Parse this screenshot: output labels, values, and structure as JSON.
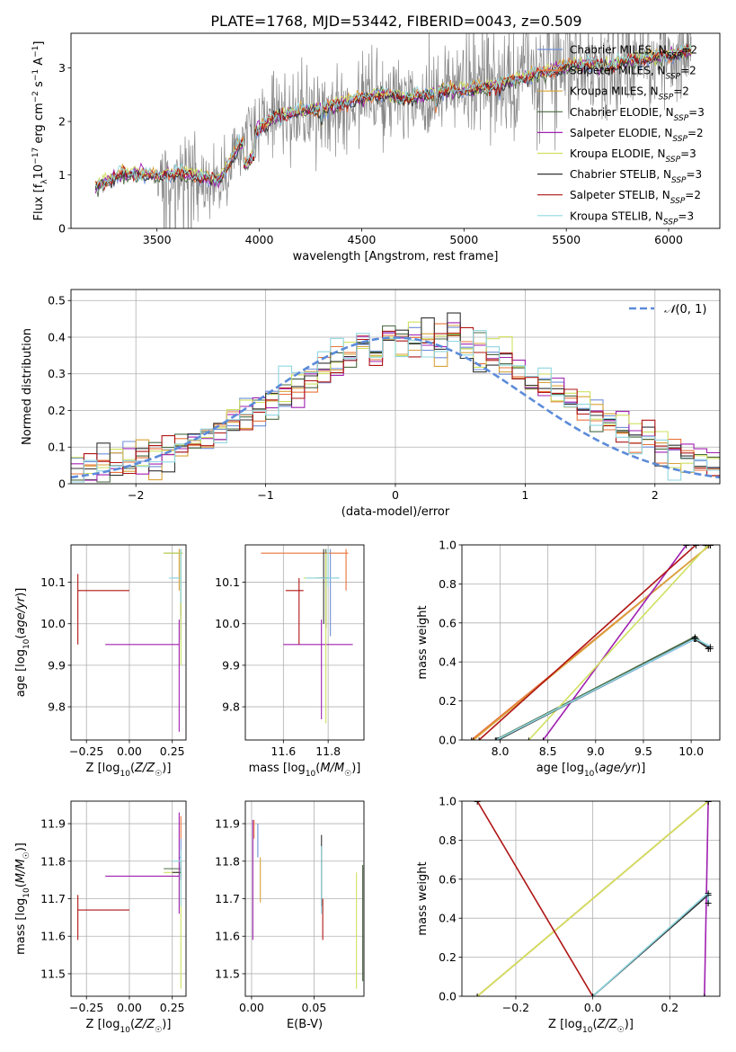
{
  "figure_title": "PLATE=1768, MJD=53442, FIBERID=0043, z=0.509",
  "colors": {
    "Chabrier MILES": "#6f8fd8",
    "Salpeter MILES": "#e8733a",
    "Kroupa MILES": "#d9a23a",
    "Chabrier ELODIE": "#4c6b43",
    "Salpeter ELODIE": "#a020b0",
    "Kroupa ELODIE": "#d0e060",
    "Chabrier STELIB": "#333333",
    "Salpeter STELIB": "#b01515",
    "Kroupa STELIB": "#8fd6e0",
    "data": "#888888",
    "normal": "#5b8bd9"
  },
  "chart_data": [
    {
      "id": "spectrum",
      "type": "line",
      "title": "PLATE=1768, MJD=53442, FIBERID=0043, z=0.509",
      "xlabel": "wavelength [Angstrom, rest frame]",
      "ylabel": "Flux [f_λ 10^-17 erg cm^-2 s^-1 A^-1]",
      "xlim": [
        3080,
        6250
      ],
      "ylim": [
        0,
        3.65
      ],
      "xticks": [
        3500,
        4000,
        4500,
        5000,
        5500,
        6000
      ],
      "yticks": [
        0,
        1,
        2,
        3
      ],
      "grid": false,
      "legend_position": "top-right",
      "legend": [
        "Chabrier MILES, N_SSP=2",
        "Salpeter MILES, N_SSP=2",
        "Kroupa MILES, N_SSP=2",
        "Chabrier ELODIE, N_SSP=3",
        "Salpeter ELODIE, N_SSP=2",
        "Kroupa ELODIE, N_SSP=3",
        "Chabrier STELIB, N_SSP=3",
        "Salpeter STELIB, N_SSP=2",
        "Kroupa STELIB, N_SSP=3"
      ],
      "continuum": {
        "x": [
          3200,
          3300,
          3400,
          3500,
          3600,
          3700,
          3800,
          3900,
          4000,
          4100,
          4200,
          4300,
          4400,
          4500,
          4600,
          4700,
          4800,
          4900,
          5000,
          5100,
          5200,
          5300,
          5400,
          5500,
          5600,
          5700,
          5800,
          5900,
          6000,
          6100
        ],
        "y": [
          0.75,
          0.95,
          1.0,
          0.95,
          1.0,
          0.95,
          0.85,
          1.5,
          1.85,
          2.1,
          2.15,
          2.2,
          2.3,
          2.4,
          2.5,
          2.4,
          2.45,
          2.55,
          2.55,
          2.6,
          2.7,
          2.8,
          2.9,
          3.0,
          3.05,
          3.0,
          3.1,
          3.15,
          3.2,
          3.3
        ]
      }
    },
    {
      "id": "residuals",
      "type": "histogram",
      "xlabel": "(data-model)/error",
      "ylabel": "Normed distribution",
      "xlim": [
        -2.5,
        2.5
      ],
      "ylim": [
        0,
        0.53
      ],
      "xticks": [
        -2,
        -1,
        0,
        1,
        2
      ],
      "yticks": [
        0.0,
        0.1,
        0.2,
        0.3,
        0.4,
        0.5
      ],
      "grid": true,
      "legend_position": "top-right",
      "legend": [
        "N(0,1)"
      ],
      "bin_width": 0.1
    },
    {
      "id": "age_vs_Z",
      "type": "errorbar",
      "xlabel": "Z [log10(Z/Z☉)]",
      "ylabel": "age [log10(age/yr)]",
      "xlim": [
        -0.34,
        0.33
      ],
      "ylim": [
        9.72,
        10.19
      ],
      "xticks": [
        -0.25,
        0.0,
        0.25
      ],
      "yticks": [
        9.8,
        9.9,
        10.0,
        10.1
      ],
      "grid": true,
      "points": [
        {
          "model": "Chabrier MILES",
          "x": 0.3,
          "y": 10.11,
          "xerr": [
            0.05,
            0.0
          ],
          "yerr": [
            0.15,
            0.07
          ]
        },
        {
          "model": "Kroupa MILES",
          "x": 0.29,
          "y": 10.12,
          "xerr": [
            0.0,
            0.0
          ],
          "yerr": [
            0.04,
            0.06
          ]
        },
        {
          "model": "Chabrier ELODIE",
          "x": 0.3,
          "y": 10.17,
          "xerr": [
            0.1,
            0.01
          ],
          "yerr": [
            0.15,
            0.01
          ]
        },
        {
          "model": "Salpeter ELODIE",
          "x": 0.29,
          "y": 9.95,
          "xerr": [
            0.43,
            0.0
          ],
          "yerr": [
            0.21,
            0.06
          ]
        },
        {
          "model": "Kroupa ELODIE",
          "x": 0.3,
          "y": 10.17,
          "xerr": [
            0.1,
            0.01
          ],
          "yerr": [
            0.27,
            0.01
          ]
        },
        {
          "model": "Salpeter STELIB",
          "x": -0.3,
          "y": 10.08,
          "xerr": [
            0.0,
            0.3
          ],
          "yerr": [
            0.13,
            0.04
          ]
        },
        {
          "model": "Kroupa STELIB",
          "x": 0.3,
          "y": 10.11,
          "xerr": [
            0.07,
            0.0
          ],
          "yerr": [
            0.06,
            0.07
          ]
        }
      ]
    },
    {
      "id": "age_vs_mass",
      "type": "errorbar",
      "xlabel": "mass [log10(M/M☉)]",
      "ylabel": "",
      "xlim": [
        11.43,
        11.96
      ],
      "ylim": [
        9.72,
        10.19
      ],
      "xticks": [
        11.6,
        11.8
      ],
      "yticks": [
        9.8,
        9.9,
        10.0,
        10.1
      ],
      "grid": true,
      "points": [
        {
          "model": "Chabrier MILES",
          "x": 11.81,
          "y": 10.11,
          "xerr": [
            0.05,
            0.04
          ],
          "yerr": [
            0.14,
            0.07
          ]
        },
        {
          "model": "Salpeter MILES",
          "x": 11.88,
          "y": 10.17,
          "xerr": [
            0.38,
            0.01
          ],
          "yerr": [
            0.09,
            0.01
          ]
        },
        {
          "model": "Chabrier ELODIE",
          "x": 11.79,
          "y": 10.11,
          "xerr": [
            0.05,
            0.01
          ],
          "yerr": [
            0.12,
            0.07
          ]
        },
        {
          "model": "Salpeter ELODIE",
          "x": 11.77,
          "y": 9.95,
          "xerr": [
            0.17,
            0.14
          ],
          "yerr": [
            0.18,
            0.06
          ]
        },
        {
          "model": "Kroupa ELODIE",
          "x": 11.79,
          "y": 10.11,
          "xerr": [
            0.1,
            0.02
          ],
          "yerr": [
            0.35,
            0.06
          ]
        },
        {
          "model": "Chabrier STELIB",
          "x": 11.78,
          "y": 10.11,
          "xerr": [
            0.02,
            0.02
          ],
          "yerr": [
            0.11,
            0.07
          ]
        },
        {
          "model": "Salpeter STELIB",
          "x": 11.67,
          "y": 10.08,
          "xerr": [
            0.06,
            0.02
          ],
          "yerr": [
            0.13,
            0.03
          ]
        },
        {
          "model": "Kroupa STELIB",
          "x": 11.8,
          "y": 10.11,
          "xerr": [
            0.1,
            0.05
          ],
          "yerr": [
            0.02,
            0.07
          ]
        }
      ]
    },
    {
      "id": "cum_age",
      "type": "line",
      "xlabel": "age [log10(age/yr)]",
      "ylabel": "mass weight",
      "xlim": [
        7.6,
        10.3
      ],
      "ylim": [
        0,
        1
      ],
      "xticks": [
        8.0,
        8.5,
        9.0,
        9.5,
        10.0
      ],
      "yticks": [
        0.0,
        0.2,
        0.4,
        0.6,
        0.8,
        1.0
      ],
      "grid": true,
      "series": [
        {
          "name": "Chabrier MILES",
          "x": [
            7.97,
            10.05,
            10.2
          ],
          "y": [
            0,
            0.52,
            0.47
          ]
        },
        {
          "name": "Salpeter MILES",
          "x": [
            7.7,
            10.2
          ],
          "y": [
            0,
            1
          ]
        },
        {
          "name": "Kroupa MILES",
          "x": [
            7.72,
            10.2
          ],
          "y": [
            0,
            1
          ]
        },
        {
          "name": "Chabrier ELODIE",
          "x": [
            7.95,
            10.04,
            10.18
          ],
          "y": [
            0,
            0.53,
            0.47
          ]
        },
        {
          "name": "Salpeter ELODIE",
          "x": [
            8.45,
            9.95,
            10.15
          ],
          "y": [
            0,
            1,
            1
          ]
        },
        {
          "name": "Kroupa ELODIE",
          "x": [
            8.3,
            10.18
          ],
          "y": [
            0,
            1
          ]
        },
        {
          "name": "Chabrier STELIB",
          "x": [
            7.98,
            10.03,
            10.18
          ],
          "y": [
            0,
            0.52,
            0.47
          ]
        },
        {
          "name": "Salpeter STELIB",
          "x": [
            7.78,
            10.05
          ],
          "y": [
            0,
            1
          ]
        },
        {
          "name": "Kroupa STELIB",
          "x": [
            7.96,
            10.04,
            10.2
          ],
          "y": [
            0,
            0.52,
            0.48
          ]
        }
      ]
    },
    {
      "id": "mass_vs_Z",
      "type": "errorbar",
      "xlabel": "Z [log10(Z/Z☉)]",
      "ylabel": "mass [log10(M/M☉)]",
      "xlim": [
        -0.34,
        0.33
      ],
      "ylim": [
        11.44,
        11.96
      ],
      "xticks": [
        -0.25,
        0.0,
        0.25
      ],
      "yticks": [
        11.5,
        11.6,
        11.7,
        11.8,
        11.9
      ],
      "grid": true,
      "points": [
        {
          "model": "Chabrier MILES",
          "x": 0.3,
          "y": 11.81,
          "xerr": [
            0.01,
            0.0
          ],
          "yerr": [
            0.04,
            0.05
          ]
        },
        {
          "model": "Salpeter MILES",
          "x": 0.3,
          "y": 11.88,
          "xerr": [
            0.0,
            0.0
          ],
          "yerr": [
            0.02,
            0.04
          ]
        },
        {
          "model": "Chabrier ELODIE",
          "x": 0.3,
          "y": 11.78,
          "xerr": [
            0.1,
            0.0
          ],
          "yerr": [
            0.02,
            0.02
          ]
        },
        {
          "model": "Salpeter ELODIE",
          "x": 0.29,
          "y": 11.76,
          "xerr": [
            0.43,
            0.0
          ],
          "yerr": [
            0.1,
            0.17
          ]
        },
        {
          "model": "Kroupa ELODIE",
          "x": 0.3,
          "y": 11.77,
          "xerr": [
            0.1,
            0.0
          ],
          "yerr": [
            0.31,
            0.02
          ]
        },
        {
          "model": "Chabrier STELIB",
          "x": 0.3,
          "y": 11.77,
          "xerr": [
            0.05,
            0.0
          ],
          "yerr": [
            0.02,
            0.02
          ]
        },
        {
          "model": "Salpeter STELIB",
          "x": -0.3,
          "y": 11.67,
          "xerr": [
            0.0,
            0.3
          ],
          "yerr": [
            0.08,
            0.04
          ]
        },
        {
          "model": "Kroupa STELIB",
          "x": 0.3,
          "y": 11.8,
          "xerr": [
            0.05,
            0.0
          ],
          "yerr": [
            0.12,
            0.03
          ]
        }
      ]
    },
    {
      "id": "mass_vs_EBV",
      "type": "errorbar",
      "xlabel": "E(B-V)",
      "ylabel": "",
      "xlim": [
        -0.005,
        0.09
      ],
      "ylim": [
        11.44,
        11.96
      ],
      "xticks": [
        0.0,
        0.05
      ],
      "yticks": [
        11.5,
        11.6,
        11.7,
        11.8,
        11.9
      ],
      "grid": true,
      "points": [
        {
          "model": "Chabrier MILES",
          "x": 0.005,
          "y": 11.86,
          "xerr": [
            0,
            0
          ],
          "yerr": [
            0.05,
            0.04
          ]
        },
        {
          "model": "Salpeter MILES",
          "x": 0.002,
          "y": 11.88,
          "xerr": [
            0,
            0
          ],
          "yerr": [
            0.02,
            0.03
          ]
        },
        {
          "model": "Kroupa MILES",
          "x": 0.007,
          "y": 11.78,
          "xerr": [
            0,
            0
          ],
          "yerr": [
            0.09,
            0.03
          ]
        },
        {
          "model": "Chabrier ELODIE",
          "x": 0.089,
          "y": 11.63,
          "xerr": [
            0,
            0
          ],
          "yerr": [
            0.15,
            0.16
          ]
        },
        {
          "model": "Salpeter ELODIE",
          "x": 0.001,
          "y": 11.76,
          "xerr": [
            0,
            0
          ],
          "yerr": [
            0.17,
            0.15
          ]
        },
        {
          "model": "Kroupa ELODIE",
          "x": 0.084,
          "y": 11.62,
          "xerr": [
            0,
            0
          ],
          "yerr": [
            0.16,
            0.15
          ]
        },
        {
          "model": "Chabrier STELIB",
          "x": 0.056,
          "y": 11.78,
          "xerr": [
            0,
            0
          ],
          "yerr": [
            0.1,
            0.09
          ]
        },
        {
          "model": "Salpeter STELIB",
          "x": 0.057,
          "y": 11.67,
          "xerr": [
            0,
            0
          ],
          "yerr": [
            0.08,
            0.03
          ]
        },
        {
          "model": "Kroupa STELIB",
          "x": 0.056,
          "y": 11.76,
          "xerr": [
            0,
            0
          ],
          "yerr": [
            0.1,
            0.08
          ]
        }
      ]
    },
    {
      "id": "cum_Z",
      "type": "line",
      "xlabel": "Z [log10(Z/Z☉)]",
      "ylabel": "mass weight",
      "xlim": [
        -0.34,
        0.33
      ],
      "ylim": [
        0,
        1
      ],
      "xticks": [
        -0.2,
        0.0,
        0.2
      ],
      "yticks": [
        0.0,
        0.2,
        0.4,
        0.6,
        0.8,
        1.0
      ],
      "grid": true,
      "series": [
        {
          "name": "Chabrier MILES",
          "x": [
            0.0,
            0.3,
            0.3
          ],
          "y": [
            0,
            0.52,
            0.48
          ]
        },
        {
          "name": "Salpeter MILES",
          "x": [
            -0.3,
            0.3
          ],
          "y": [
            0,
            1
          ]
        },
        {
          "name": "Kroupa MILES",
          "x": [
            -0.3,
            0.3
          ],
          "y": [
            0,
            1
          ]
        },
        {
          "name": "Chabrier ELODIE",
          "x": [
            0.0,
            0.3
          ],
          "y": [
            0,
            0.52
          ]
        },
        {
          "name": "Salpeter ELODIE",
          "x": [
            0.29,
            0.3
          ],
          "y": [
            0,
            1
          ]
        },
        {
          "name": "Kroupa ELODIE",
          "x": [
            -0.3,
            0.3
          ],
          "y": [
            0,
            1
          ]
        },
        {
          "name": "Chabrier STELIB",
          "x": [
            0.0,
            0.3
          ],
          "y": [
            0,
            0.52
          ]
        },
        {
          "name": "Salpeter STELIB",
          "x": [
            -0.3,
            0.0
          ],
          "y": [
            1,
            0
          ]
        },
        {
          "name": "Kroupa STELIB",
          "x": [
            0.0,
            0.3,
            0.3
          ],
          "y": [
            0,
            0.53,
            0.48
          ]
        }
      ]
    }
  ]
}
